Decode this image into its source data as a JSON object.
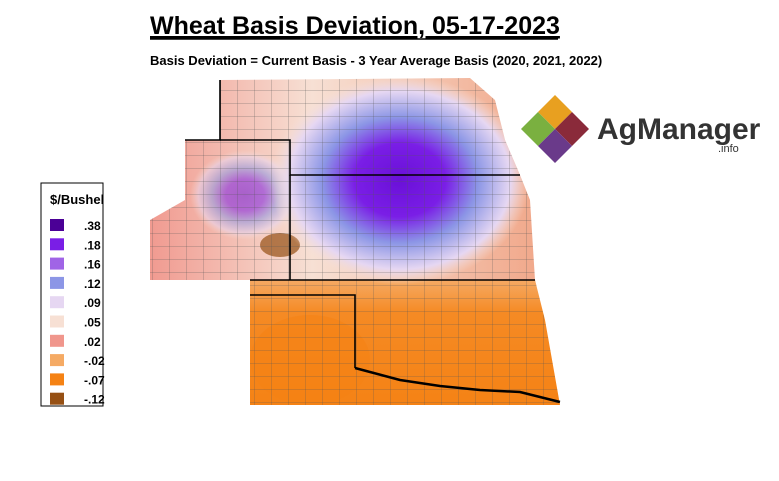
{
  "header": {
    "title": "Wheat Basis Deviation, 05-17-2023",
    "subtitle": "Basis Deviation = Current Basis - 3 Year Average Basis (2020, 2021, 2022)"
  },
  "legend": {
    "title": "$/Bushel",
    "items": [
      {
        "label": ".38",
        "color": "#4b0096"
      },
      {
        "label": ".18",
        "color": "#7a1ee6"
      },
      {
        "label": ".16",
        "color": "#a064e6"
      },
      {
        "label": ".12",
        "color": "#8c96e6"
      },
      {
        "label": ".09",
        "color": "#e6d7f2"
      },
      {
        "label": ".05",
        "color": "#f7e0d4"
      },
      {
        "label": ".02",
        "color": "#f0968c"
      },
      {
        "label": "-.02",
        "color": "#f5aa64"
      },
      {
        "label": "-.07",
        "color": "#f58214"
      },
      {
        "label": "-.12",
        "color": "#965014"
      }
    ]
  },
  "logo": {
    "name": "AgManager",
    "suffix": ".info"
  }
}
